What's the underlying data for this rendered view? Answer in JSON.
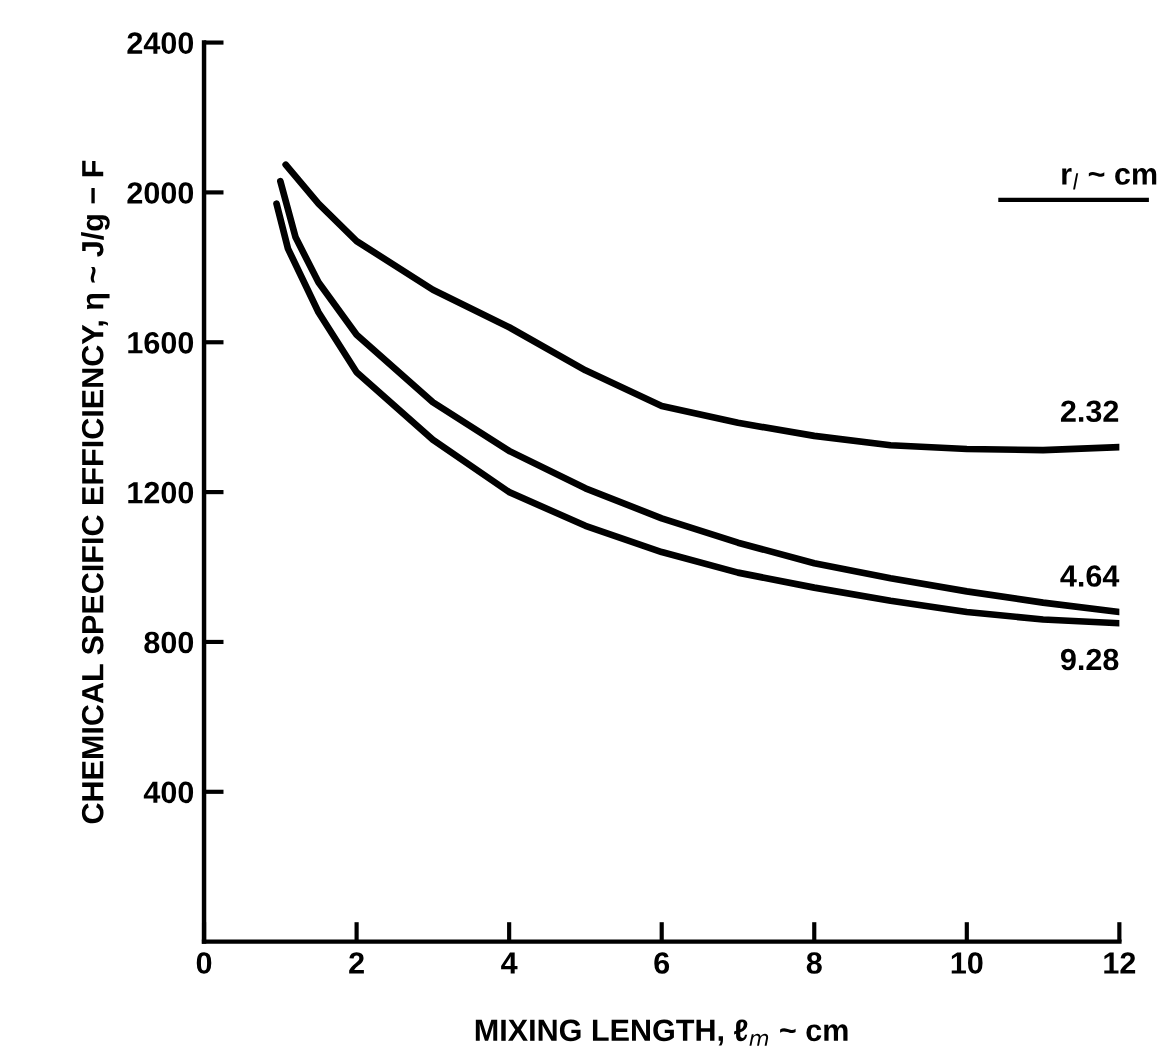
{
  "chart_data": {
    "type": "line",
    "xlabel": "MIXING LENGTH, ℓ$_{m}$ ~ cm",
    "ylabel": "CHEMICAL SPECIFIC EFFICIENCY, η ~ J/g − F",
    "legend_title": "r$_{l}$ ~ cm",
    "xlim": [
      0,
      12
    ],
    "ylim": [
      0,
      2400
    ],
    "xticks": [
      0,
      2,
      4,
      6,
      8,
      10,
      12
    ],
    "yticks": [
      400,
      800,
      1200,
      1600,
      2000,
      2400
    ],
    "grid": false,
    "legend": false,
    "marker": "none",
    "line_style": "solid",
    "series": [
      {
        "name": "2.32",
        "color": "#000000",
        "x": [
          1.07,
          1.5,
          2,
          3,
          4,
          5,
          6,
          7,
          8,
          9,
          10,
          11,
          12
        ],
        "values": [
          2074,
          1970,
          1870,
          1740,
          1640,
          1525,
          1430,
          1385,
          1350,
          1325,
          1315,
          1312,
          1320
        ]
      },
      {
        "name": "4.64",
        "color": "#000000",
        "x": [
          1.0,
          1.2,
          1.5,
          2,
          3,
          4,
          5,
          6,
          7,
          8,
          9,
          10,
          11,
          12
        ],
        "values": [
          2030,
          1880,
          1760,
          1620,
          1440,
          1310,
          1210,
          1130,
          1065,
          1010,
          970,
          935,
          905,
          880
        ]
      },
      {
        "name": "9.28",
        "color": "#000000",
        "x": [
          0.95,
          1.1,
          1.5,
          2,
          3,
          4,
          5,
          6,
          7,
          8,
          9,
          10,
          11,
          12
        ],
        "values": [
          1970,
          1850,
          1680,
          1520,
          1340,
          1200,
          1110,
          1040,
          985,
          945,
          910,
          880,
          860,
          850
        ]
      }
    ]
  }
}
